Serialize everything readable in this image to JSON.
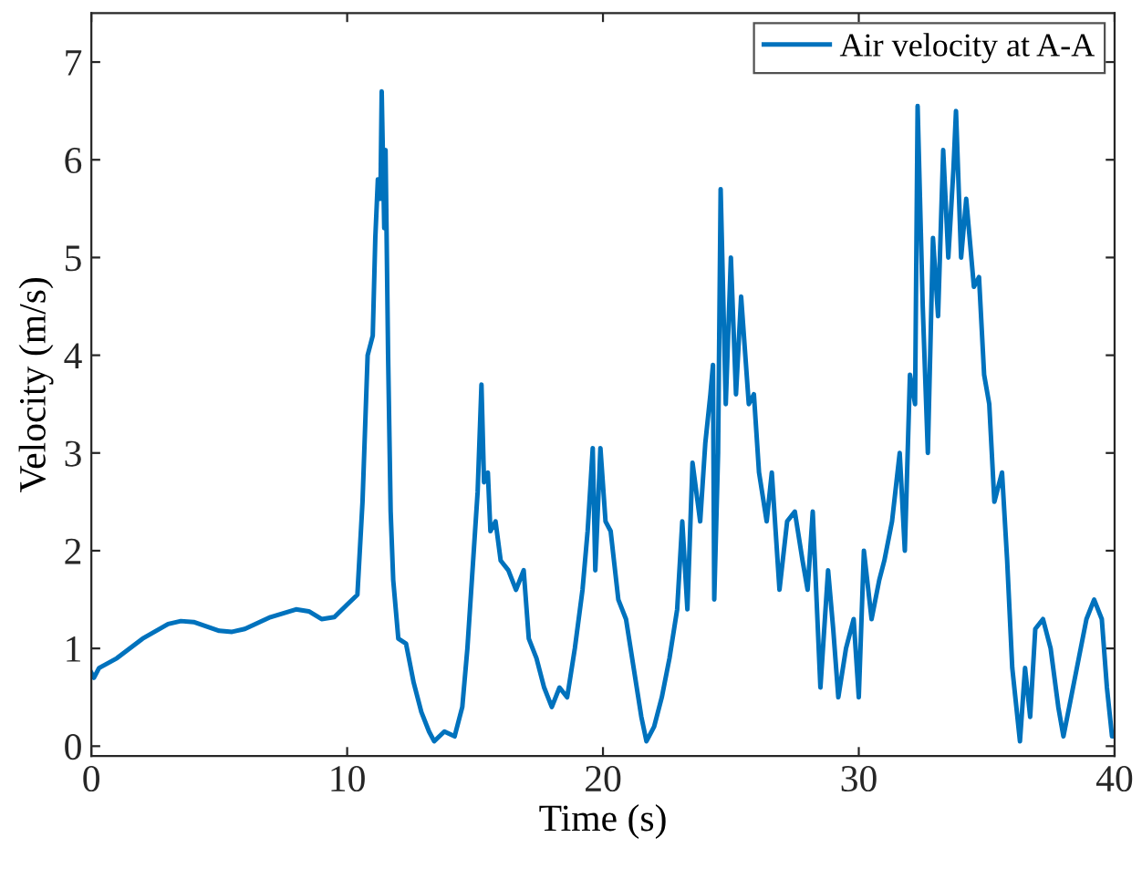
{
  "chart_data": {
    "type": "line",
    "xlabel": "Time (s)",
    "ylabel": "Velocity (m/s)",
    "xlim": [
      0,
      40
    ],
    "ylim": [
      -0.1,
      7.5
    ],
    "xticks": [
      0,
      10,
      20,
      30,
      40
    ],
    "yticks": [
      0,
      1,
      2,
      3,
      4,
      5,
      6,
      7
    ],
    "grid": false,
    "legend": "top right",
    "marker": "none",
    "line_style": "solid",
    "series": [
      {
        "name": "Air velocity at A-A",
        "color": "#0072bd",
        "x": [
          0,
          0.1,
          0.3,
          1,
          2,
          3,
          3.5,
          4,
          5,
          5.5,
          6,
          7,
          8,
          8.5,
          9,
          9.5,
          10,
          10.4,
          10.6,
          10.8,
          11,
          11.1,
          11.2,
          11.3,
          11.35,
          11.45,
          11.5,
          11.6,
          11.7,
          11.8,
          12,
          12.3,
          12.6,
          12.9,
          13.2,
          13.4,
          13.8,
          14.2,
          14.5,
          14.7,
          15,
          15.1,
          15.25,
          15.35,
          15.5,
          15.6,
          15.8,
          16,
          16.3,
          16.6,
          16.9,
          17.1,
          17.4,
          17.7,
          18,
          18.3,
          18.6,
          18.9,
          19.2,
          19.4,
          19.6,
          19.7,
          19.9,
          20.1,
          20.3,
          20.6,
          20.9,
          21.2,
          21.5,
          21.7,
          22,
          22.3,
          22.6,
          22.9,
          23.1,
          23.3,
          23.5,
          23.8,
          24,
          24.2,
          24.3,
          24.35,
          24.5,
          24.6,
          24.8,
          25,
          25.2,
          25.4,
          25.7,
          25.9,
          26.1,
          26.4,
          26.6,
          26.9,
          27.2,
          27.5,
          27.8,
          28,
          28.2,
          28.5,
          28.8,
          29,
          29.2,
          29.5,
          29.8,
          30,
          30.2,
          30.5,
          30.8,
          31,
          31.3,
          31.6,
          31.8,
          32,
          32.2,
          32.3,
          32.5,
          32.7,
          32.9,
          33.1,
          33.3,
          33.5,
          33.7,
          33.8,
          34,
          34.2,
          34.5,
          34.7,
          34.9,
          35.1,
          35.3,
          35.6,
          35.8,
          36,
          36.3,
          36.5,
          36.7,
          36.9,
          37.2,
          37.5,
          37.8,
          38,
          38.3,
          38.6,
          38.9,
          39.2,
          39.5,
          39.7,
          39.9,
          40
        ],
        "values": [
          0.75,
          0.7,
          0.8,
          0.9,
          1.1,
          1.25,
          1.28,
          1.27,
          1.18,
          1.17,
          1.2,
          1.32,
          1.4,
          1.38,
          1.3,
          1.32,
          1.45,
          1.55,
          2.5,
          4.0,
          4.2,
          5.2,
          5.8,
          5.6,
          6.7,
          5.3,
          6.1,
          4.0,
          2.4,
          1.7,
          1.1,
          1.05,
          0.65,
          0.35,
          0.15,
          0.05,
          0.15,
          0.1,
          0.4,
          1.0,
          2.2,
          2.6,
          3.7,
          2.7,
          2.8,
          2.2,
          2.3,
          1.9,
          1.8,
          1.6,
          1.8,
          1.1,
          0.9,
          0.6,
          0.4,
          0.6,
          0.5,
          1.0,
          1.6,
          2.2,
          3.05,
          1.8,
          3.05,
          2.3,
          2.2,
          1.5,
          1.3,
          0.8,
          0.3,
          0.05,
          0.2,
          0.5,
          0.9,
          1.4,
          2.3,
          1.4,
          2.9,
          2.3,
          3.1,
          3.6,
          3.9,
          1.5,
          3.0,
          5.7,
          3.5,
          5.0,
          3.6,
          4.6,
          3.5,
          3.6,
          2.8,
          2.3,
          2.8,
          1.6,
          2.3,
          2.4,
          1.9,
          1.6,
          2.4,
          0.6,
          1.8,
          1.2,
          0.5,
          1.0,
          1.3,
          0.5,
          2.0,
          1.3,
          1.7,
          1.9,
          2.3,
          3.0,
          2.0,
          3.8,
          3.5,
          6.55,
          4.5,
          3.0,
          5.2,
          4.4,
          6.1,
          5.0,
          5.9,
          6.5,
          5.0,
          5.6,
          4.7,
          4.8,
          3.8,
          3.5,
          2.5,
          2.8,
          1.9,
          0.8,
          0.05,
          0.8,
          0.3,
          1.2,
          1.3,
          1.0,
          0.4,
          0.1,
          0.5,
          0.9,
          1.3,
          1.5,
          1.3,
          0.6,
          0.1,
          0.1
        ]
      }
    ]
  }
}
